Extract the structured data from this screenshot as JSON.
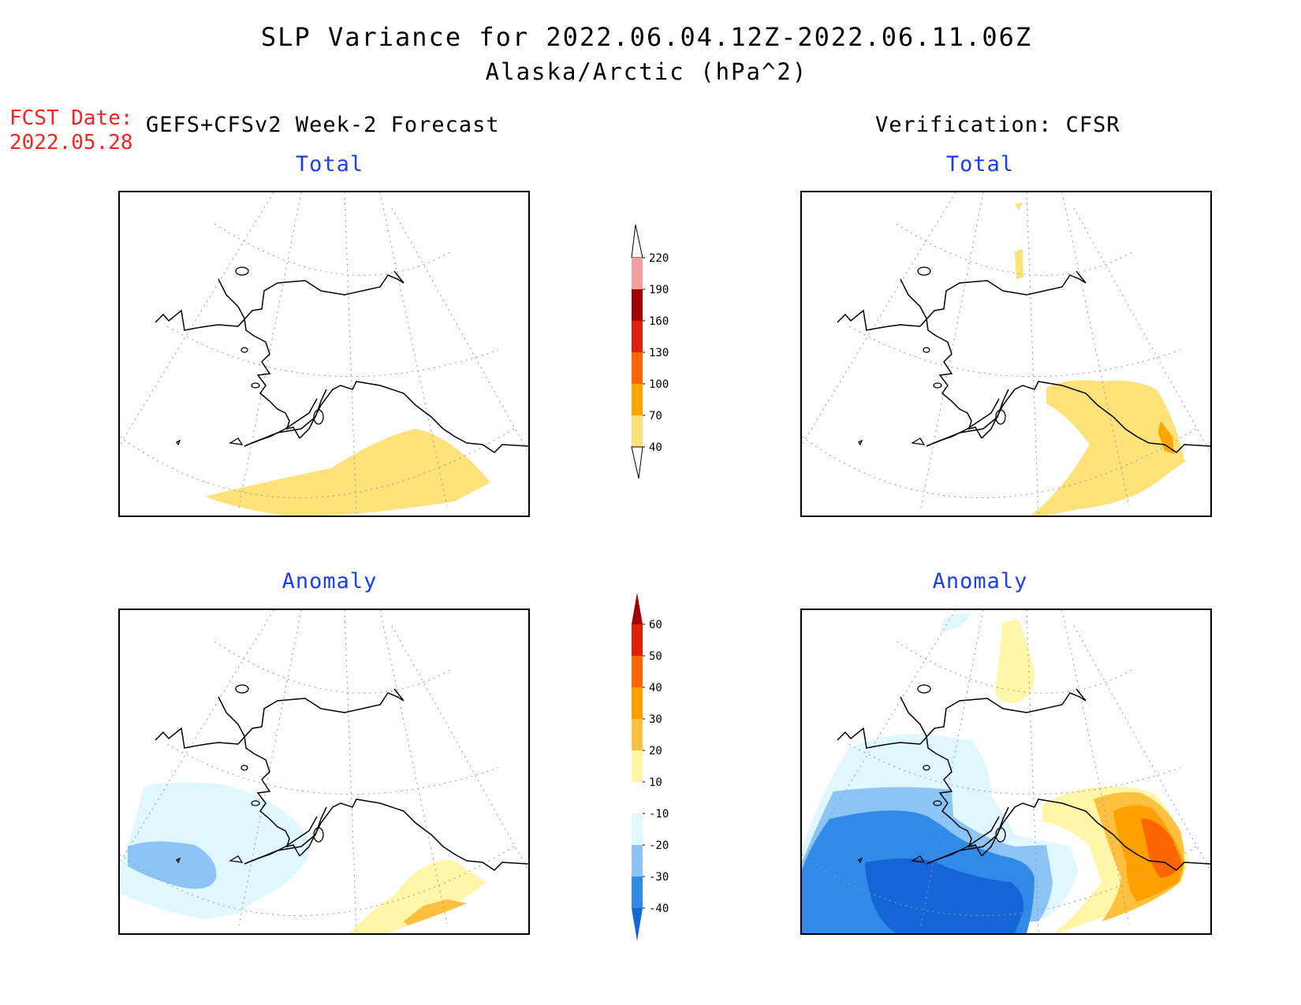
{
  "title": {
    "line1": "SLP Variance for 2022.06.04.12Z-2022.06.11.06Z",
    "line2": "Alaska/Arctic (hPa^2)"
  },
  "fcst": {
    "label": "FCST Date:",
    "date": "2022.05.28"
  },
  "left_header": "GEFS+CFSv2 Week-2 Forecast",
  "right_header": "Verification: CFSR",
  "panels": {
    "forecast_total": {
      "title": "Total"
    },
    "verif_total": {
      "title": "Total"
    },
    "forecast_anomaly": {
      "title": "Anomaly"
    },
    "verif_anomaly": {
      "title": "Anomaly"
    }
  },
  "colorbars": {
    "total": {
      "levels": [
        "40",
        "70",
        "100",
        "130",
        "160",
        "190",
        "220"
      ],
      "colors": [
        "#fde27a",
        "#ffa500",
        "#ff6600",
        "#e0200f",
        "#a00000",
        "#f4a0a0",
        "#ffe0e0"
      ]
    },
    "anomaly": {
      "levels": [
        "-40",
        "-30",
        "-20",
        "-10",
        "10",
        "20",
        "30",
        "40",
        "50",
        "60"
      ],
      "colors": [
        "#1565d8",
        "#2f8ae8",
        "#8cc4f6",
        "#dff8ff",
        "#ffffff",
        "#fff6a8",
        "#ffbf3f",
        "#ffa000",
        "#ff6500",
        "#e02000",
        "#a00000"
      ]
    }
  },
  "map_colors": {
    "yellow": "#fde27a",
    "orange": "#ffa000",
    "anom_pale_yellow": "#fff6a8",
    "anom_light_orange": "#ffbf3f",
    "anom_orange": "#ffa000",
    "anom_dark_orange": "#ff6500",
    "anom_pale_blue": "#dff8ff",
    "anom_light_blue": "#8cc4f6",
    "anom_mid_blue": "#2f8ae8",
    "anom_dark_blue": "#1565d8"
  }
}
